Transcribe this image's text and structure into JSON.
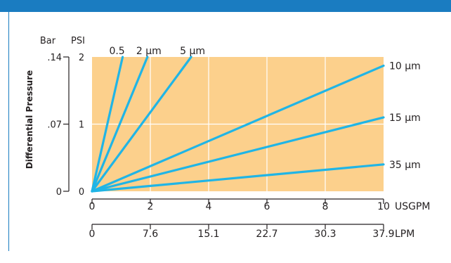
{
  "colors": {
    "header": "#1a7cc1",
    "plot_bg": "#fcd08c",
    "line": "#20b5e6",
    "grid": "#ffffff",
    "text": "#231f20"
  },
  "chart_data": {
    "type": "line",
    "ylabel": "Differential Pressure",
    "y_units": {
      "left": "Bar",
      "right": "PSI"
    },
    "y_ticks_bar": [
      ".14",
      ".07",
      "0"
    ],
    "y_ticks_psi": [
      "2",
      "1",
      "0"
    ],
    "ylim_psi": [
      0,
      2
    ],
    "x_unit": "USGPM",
    "x_ticks": [
      "0",
      "2",
      "4",
      "6",
      "8",
      "10"
    ],
    "xlim": [
      0,
      10
    ],
    "x2_unit": "LPM",
    "x2_ticks": [
      "0",
      "7.6",
      "15.1",
      "22.7",
      "30.3",
      "37.9"
    ],
    "grid": true,
    "series": [
      {
        "name": "0.5",
        "label_pos": "top",
        "x": [
          0,
          1.05
        ],
        "y": [
          0,
          2
        ]
      },
      {
        "name": "2 µm",
        "label_pos": "top",
        "x": [
          0,
          1.9
        ],
        "y": [
          0,
          2
        ]
      },
      {
        "name": "5 µm",
        "label_pos": "top",
        "x": [
          0,
          3.4
        ],
        "y": [
          0,
          2
        ]
      },
      {
        "name": "10 µm",
        "label_pos": "right",
        "x": [
          0,
          10
        ],
        "y": [
          0,
          1.87
        ]
      },
      {
        "name": "15 µm",
        "label_pos": "right",
        "x": [
          0,
          10
        ],
        "y": [
          0,
          1.1
        ]
      },
      {
        "name": "35 µm",
        "label_pos": "right",
        "x": [
          0,
          10
        ],
        "y": [
          0,
          0.4
        ]
      }
    ]
  }
}
